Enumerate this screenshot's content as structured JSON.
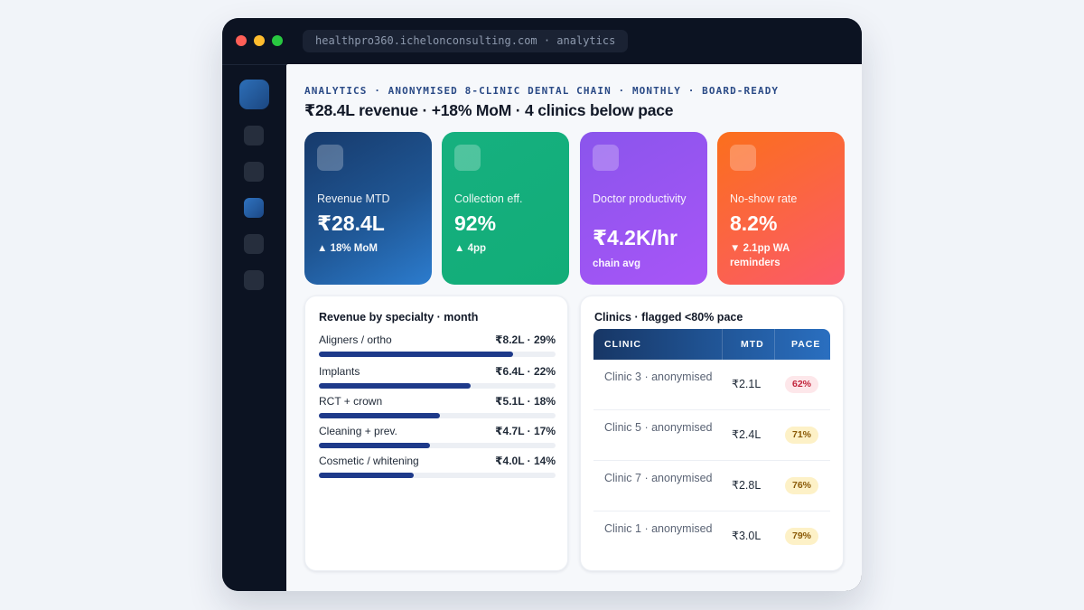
{
  "window": {
    "url": "healthpro360.ichelonconsulting.com · analytics"
  },
  "sidebar": {
    "items": [
      {
        "icon": "logo-icon",
        "active": false
      },
      {
        "icon": "nav-icon",
        "active": false
      },
      {
        "icon": "nav-icon",
        "active": false
      },
      {
        "icon": "nav-icon",
        "active": true
      },
      {
        "icon": "nav-icon",
        "active": false
      },
      {
        "icon": "nav-icon",
        "active": false
      }
    ]
  },
  "header": {
    "eyebrow": "ANALYTICS · ANONYMISED 8-CLINIC DENTAL CHAIN · MONTHLY · BOARD-READY",
    "headline": "₹28.4L revenue · +18% MoM · 4 clinics below pace"
  },
  "kpis": [
    {
      "label": "Revenue MTD",
      "value": "₹28.4L",
      "delta": "▲ 18% MoM",
      "color": "#1f5694"
    },
    {
      "label": "Collection eff.",
      "value": "92%",
      "delta": "▲ 4pp",
      "color": "#12ad78"
    },
    {
      "label": "Doctor productivity",
      "value": "₹4.2K/hr",
      "delta": "chain avg",
      "color": "#a855f7"
    },
    {
      "label": "No-show rate",
      "value": "8.2%",
      "delta": "▼ 2.1pp WA reminders",
      "color": "#fb6f1c"
    }
  ],
  "specialty": {
    "title": "Revenue by specialty · month",
    "rows": [
      {
        "name": "Aligners / ortho",
        "value": "₹8.2L · 29%",
        "fill": 0.82
      },
      {
        "name": "Implants",
        "value": "₹6.4L · 22%",
        "fill": 0.64
      },
      {
        "name": "RCT + crown",
        "value": "₹5.1L · 18%",
        "fill": 0.51
      },
      {
        "name": "Cleaning + prev.",
        "value": "₹4.7L · 17%",
        "fill": 0.47
      },
      {
        "name": "Cosmetic / whitening",
        "value": "₹4.0L · 14%",
        "fill": 0.4
      }
    ]
  },
  "clinics": {
    "title": "Clinics · flagged <80% pace",
    "columns": [
      "CLINIC",
      "MTD",
      "PACE"
    ],
    "rows": [
      {
        "clinic": "Clinic 3 · anonymised",
        "mtd": "₹2.1L",
        "pace": "62%",
        "status": "red"
      },
      {
        "clinic": "Clinic 5 · anonymised",
        "mtd": "₹2.4L",
        "pace": "71%",
        "status": "amber"
      },
      {
        "clinic": "Clinic 7 · anonymised",
        "mtd": "₹2.8L",
        "pace": "76%",
        "status": "amber"
      },
      {
        "clinic": "Clinic 1 · anonymised",
        "mtd": "₹3.0L",
        "pace": "79%",
        "status": "amber"
      }
    ]
  }
}
